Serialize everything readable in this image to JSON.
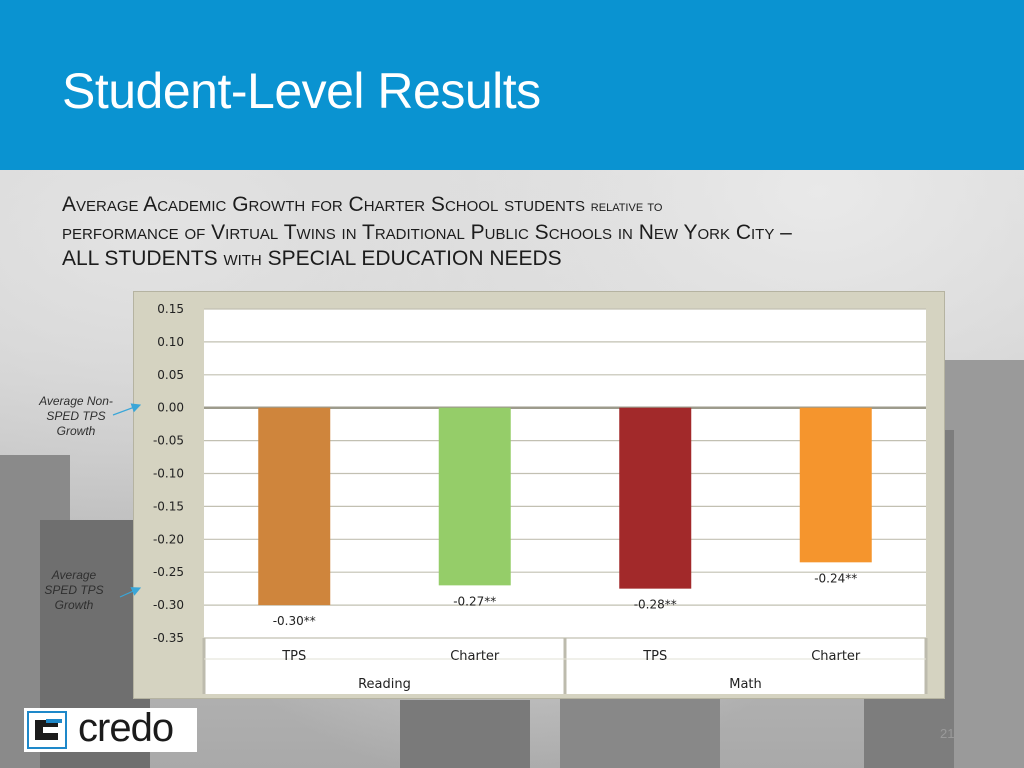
{
  "header": {
    "title": "Student-Level Results"
  },
  "subtitle": {
    "line1_a": "Average Academic Growth for Charter School students",
    "line1_b": "relative to",
    "line2": "performance of Virtual Twins in Traditional Public Schools in New York City –",
    "line3_a": "ALL STUDENTS",
    "line3_b": "with",
    "line3_c": "SPECIAL EDUCATION NEEDS"
  },
  "annotations": {
    "non_sped": "Average Non-SPED TPS Growth",
    "sped": "Average SPED TPS Growth"
  },
  "chart_data": {
    "type": "bar",
    "title": "",
    "xlabel": "",
    "ylabel": "",
    "categories": [
      "TPS",
      "Charter",
      "TPS",
      "Charter"
    ],
    "groups": [
      {
        "label": "Reading",
        "categories": [
          "TPS",
          "Charter"
        ]
      },
      {
        "label": "Math",
        "categories": [
          "TPS",
          "Charter"
        ]
      }
    ],
    "values": [
      -0.3,
      -0.27,
      -0.275,
      -0.235
    ],
    "data_labels": [
      "-0.30**",
      "-0.27**",
      "-0.28**",
      "-0.24**"
    ],
    "colors": [
      "#cf853c",
      "#95cd69",
      "#a2292a",
      "#f5952d"
    ],
    "ylim": [
      -0.35,
      0.15
    ],
    "yticks": [
      0.15,
      0.1,
      0.05,
      0.0,
      -0.05,
      -0.1,
      -0.15,
      -0.2,
      -0.25,
      -0.3,
      -0.35
    ],
    "ytick_labels": [
      "0.15",
      "0.10",
      "0.05",
      "0.00",
      "-0.05",
      "-0.10",
      "-0.15",
      "-0.20",
      "-0.25",
      "-0.30",
      "-0.35"
    ],
    "grid": true,
    "legend": "none"
  },
  "logo": {
    "name": "credo",
    "mark_icon": "credo-c-icon"
  },
  "page": {
    "number": "21"
  }
}
